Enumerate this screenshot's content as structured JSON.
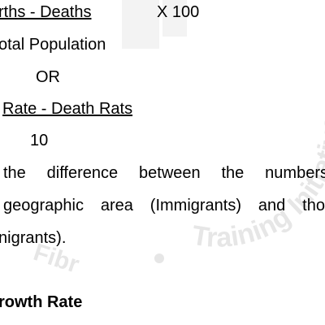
{
  "formula1": {
    "numerator": "rths  -  Deaths",
    "multiplier": "X 100",
    "denominator": "otal Population"
  },
  "or_label": "OR",
  "formula2": {
    "numerator": "Rate  -  Death  Rats",
    "denominator": "10"
  },
  "paragraph": {
    "line1": [
      "the",
      "difference",
      "between",
      "the",
      "numbers"
    ],
    "line2": [
      "geographic",
      "area",
      "(Immigrants)",
      "and",
      "tho"
    ],
    "line3": "nigrants)."
  },
  "heading": "rowth Rate",
  "watermark": {
    "text_arc": "Training Initiative",
    "text_left": "Fibr",
    "color": "#e6e6e6"
  }
}
